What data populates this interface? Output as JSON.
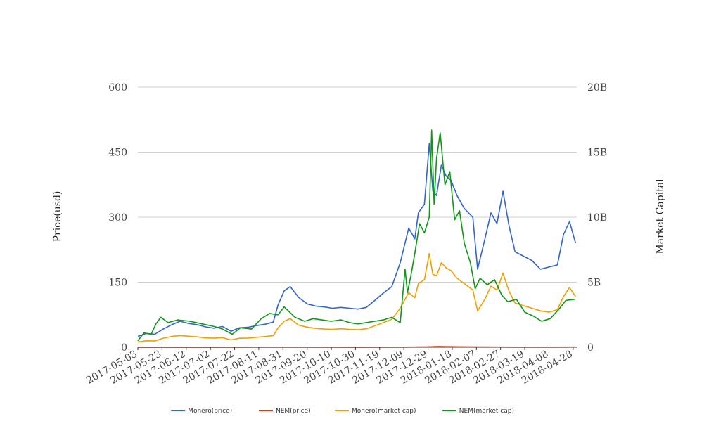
{
  "chart_data": {
    "type": "line",
    "title": "",
    "ylabel": "Price(usd)",
    "ylabel_right": "Market Capital",
    "ylim": [
      0,
      600
    ],
    "ylim_right": [
      0,
      20000000000
    ],
    "yticks_left": [
      "0",
      "150",
      "300",
      "450",
      "600"
    ],
    "yticks_right": [
      "0",
      "5B",
      "10B",
      "15B",
      "20B"
    ],
    "x_tick_labels": [
      "2017-05-03",
      "2017-05-23",
      "2017-06-12",
      "2017-07-02",
      "2017-07-22",
      "2017-08-11",
      "2017-08-31",
      "2017-09-20",
      "2017-10-10",
      "2017-10-30",
      "2017-11-19",
      "2017-12-09",
      "2017-12-29",
      "2018-01-18",
      "2018-02-07",
      "2018-02-27",
      "2018-03-19",
      "2018-04-08",
      "2018-04-28"
    ],
    "x_range": [
      "2017-05-03",
      "2018-05-01"
    ],
    "grid": true,
    "legend_position": "bottom",
    "series": [
      {
        "name": "Monero(price)",
        "axis": "left",
        "color": "#3366cc",
        "x": [
          "2017-05-03",
          "2017-05-10",
          "2017-05-17",
          "2017-05-24",
          "2017-05-31",
          "2017-06-07",
          "2017-06-14",
          "2017-06-21",
          "2017-06-28",
          "2017-07-05",
          "2017-07-12",
          "2017-07-19",
          "2017-07-26",
          "2017-08-02",
          "2017-08-09",
          "2017-08-16",
          "2017-08-23",
          "2017-08-27",
          "2017-09-01",
          "2017-09-06",
          "2017-09-13",
          "2017-09-20",
          "2017-09-27",
          "2017-10-04",
          "2017-10-11",
          "2017-10-18",
          "2017-10-25",
          "2017-11-01",
          "2017-11-08",
          "2017-11-15",
          "2017-11-22",
          "2017-11-29",
          "2017-12-06",
          "2017-12-13",
          "2017-12-18",
          "2017-12-21",
          "2017-12-26",
          "2017-12-30",
          "2018-01-02",
          "2018-01-05",
          "2018-01-09",
          "2018-01-13",
          "2018-01-17",
          "2018-01-22",
          "2018-01-28",
          "2018-02-04",
          "2018-02-08",
          "2018-02-14",
          "2018-02-19",
          "2018-02-24",
          "2018-03-01",
          "2018-03-06",
          "2018-03-11",
          "2018-03-18",
          "2018-03-25",
          "2018-04-01",
          "2018-04-08",
          "2018-04-15",
          "2018-04-20",
          "2018-04-25",
          "2018-04-30"
        ],
        "y": [
          25,
          32,
          30,
          42,
          52,
          60,
          55,
          52,
          47,
          44,
          48,
          37,
          45,
          46,
          50,
          53,
          58,
          98,
          130,
          140,
          115,
          100,
          95,
          93,
          90,
          92,
          90,
          88,
          92,
          108,
          125,
          140,
          195,
          275,
          250,
          310,
          330,
          470,
          360,
          350,
          420,
          395,
          385,
          350,
          320,
          300,
          180,
          250,
          310,
          285,
          360,
          280,
          220,
          210,
          200,
          180,
          185,
          190,
          260,
          290,
          240
        ]
      },
      {
        "name": "NEM(price)",
        "axis": "left",
        "color": "#dc3912",
        "x": [
          "2017-05-03",
          "2017-07-01",
          "2017-09-01",
          "2017-11-01",
          "2017-12-10",
          "2017-12-29",
          "2018-01-07",
          "2018-01-20",
          "2018-02-10",
          "2018-03-10",
          "2018-04-10",
          "2018-04-30"
        ],
        "y": [
          0.06,
          0.18,
          0.3,
          0.2,
          0.25,
          1.0,
          1.8,
          1.2,
          0.6,
          0.35,
          0.25,
          0.45
        ]
      },
      {
        "name": "Monero(market cap)",
        "axis": "right",
        "color": "#f2a000",
        "x": [
          "2017-05-03",
          "2017-05-10",
          "2017-05-17",
          "2017-05-24",
          "2017-05-31",
          "2017-06-07",
          "2017-06-14",
          "2017-06-21",
          "2017-06-28",
          "2017-07-05",
          "2017-07-12",
          "2017-07-19",
          "2017-07-26",
          "2017-08-02",
          "2017-08-09",
          "2017-08-16",
          "2017-08-23",
          "2017-08-27",
          "2017-09-01",
          "2017-09-06",
          "2017-09-13",
          "2017-09-20",
          "2017-09-27",
          "2017-10-04",
          "2017-10-11",
          "2017-10-18",
          "2017-10-25",
          "2017-11-01",
          "2017-11-08",
          "2017-11-15",
          "2017-11-22",
          "2017-11-29",
          "2017-12-06",
          "2017-12-13",
          "2017-12-18",
          "2017-12-21",
          "2017-12-26",
          "2017-12-30",
          "2018-01-02",
          "2018-01-05",
          "2018-01-09",
          "2018-01-13",
          "2018-01-17",
          "2018-01-22",
          "2018-01-28",
          "2018-02-04",
          "2018-02-08",
          "2018-02-14",
          "2018-02-19",
          "2018-02-24",
          "2018-03-01",
          "2018-03-06",
          "2018-03-11",
          "2018-03-18",
          "2018-03-25",
          "2018-04-01",
          "2018-04-08",
          "2018-04-15",
          "2018-04-20",
          "2018-04-25",
          "2018-04-30"
        ],
        "y": [
          400000000,
          500000000,
          480000000,
          700000000,
          830000000,
          900000000,
          850000000,
          800000000,
          720000000,
          700000000,
          740000000,
          560000000,
          690000000,
          710000000,
          770000000,
          820000000,
          900000000,
          1500000000,
          2000000000,
          2200000000,
          1700000000,
          1550000000,
          1450000000,
          1400000000,
          1380000000,
          1420000000,
          1380000000,
          1350000000,
          1420000000,
          1650000000,
          1900000000,
          2150000000,
          3000000000,
          4200000000,
          3800000000,
          4900000000,
          5200000000,
          7200000000,
          5600000000,
          5500000000,
          6500000000,
          6100000000,
          5900000000,
          5300000000,
          4900000000,
          4400000000,
          2800000000,
          3700000000,
          4700000000,
          4400000000,
          5700000000,
          4300000000,
          3400000000,
          3200000000,
          3000000000,
          2800000000,
          2700000000,
          2900000000,
          3900000000,
          4600000000,
          3900000000
        ]
      },
      {
        "name": "NEM(market cap)",
        "axis": "right",
        "color": "#109618",
        "x": [
          "2017-05-03",
          "2017-05-08",
          "2017-05-14",
          "2017-05-18",
          "2017-05-22",
          "2017-05-28",
          "2017-06-05",
          "2017-06-15",
          "2017-06-25",
          "2017-07-05",
          "2017-07-12",
          "2017-07-20",
          "2017-07-27",
          "2017-08-05",
          "2017-08-13",
          "2017-08-20",
          "2017-08-27",
          "2017-09-01",
          "2017-09-10",
          "2017-09-18",
          "2017-09-25",
          "2017-10-02",
          "2017-10-10",
          "2017-10-18",
          "2017-10-25",
          "2017-11-01",
          "2017-11-08",
          "2017-11-15",
          "2017-11-22",
          "2017-11-29",
          "2017-12-06",
          "2017-12-10",
          "2017-12-12",
          "2017-12-15",
          "2017-12-18",
          "2017-12-22",
          "2017-12-26",
          "2017-12-30",
          "2018-01-01",
          "2018-01-03",
          "2018-01-05",
          "2018-01-08",
          "2018-01-12",
          "2018-01-16",
          "2018-01-20",
          "2018-01-24",
          "2018-01-28",
          "2018-02-02",
          "2018-02-06",
          "2018-02-10",
          "2018-02-16",
          "2018-02-22",
          "2018-02-28",
          "2018-03-05",
          "2018-03-12",
          "2018-03-19",
          "2018-03-26",
          "2018-04-02",
          "2018-04-09",
          "2018-04-16",
          "2018-04-22",
          "2018-04-30"
        ],
        "y": [
          500000000,
          1100000000,
          1000000000,
          1800000000,
          2300000000,
          1900000000,
          2100000000,
          2000000000,
          1800000000,
          1600000000,
          1400000000,
          1000000000,
          1500000000,
          1400000000,
          2200000000,
          2600000000,
          2500000000,
          3100000000,
          2300000000,
          2000000000,
          2200000000,
          2100000000,
          2000000000,
          2100000000,
          1900000000,
          1800000000,
          1900000000,
          2000000000,
          2100000000,
          2300000000,
          1900000000,
          6000000000,
          4200000000,
          5600000000,
          7200000000,
          9500000000,
          8800000000,
          10000000000,
          16700000000,
          11000000000,
          14500000000,
          16500000000,
          12500000000,
          13500000000,
          9800000000,
          10500000000,
          8000000000,
          6500000000,
          4500000000,
          5300000000,
          4800000000,
          5200000000,
          4000000000,
          3500000000,
          3700000000,
          2700000000,
          2400000000,
          2000000000,
          2200000000,
          2900000000,
          3600000000,
          3700000000
        ]
      }
    ]
  }
}
